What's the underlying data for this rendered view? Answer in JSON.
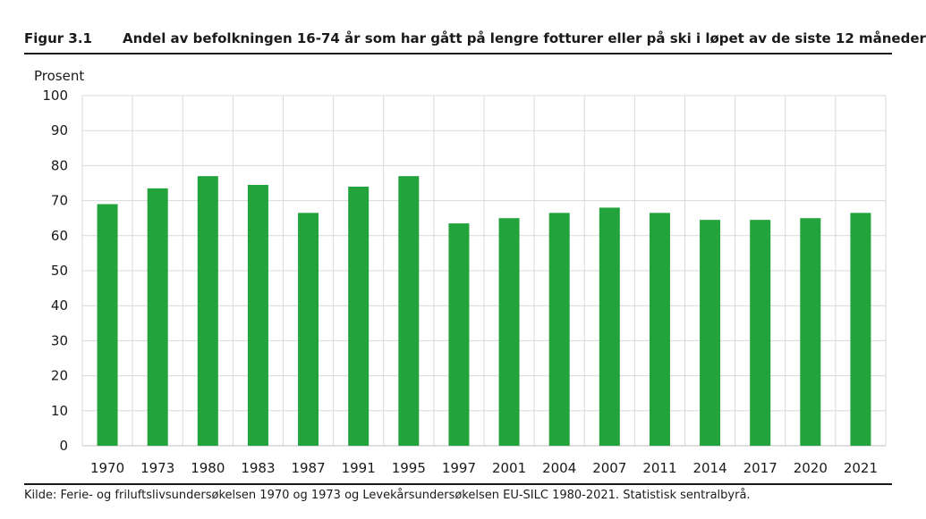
{
  "figure": {
    "label": "Figur 3.1",
    "title": "Andel av befolkningen 16-74 år som har gått på lengre fotturer eller på ski i løpet av de siste 12 måneder",
    "source": "Kilde: Ferie- og friluftslivsundersøkelsen 1970 og 1973 og Levekårsundersøkelsen EU-SILC 1980-2021. Statistisk sentralbyrå."
  },
  "chart_data": {
    "type": "bar",
    "title": "Andel av befolkningen 16-74 år som har gått på lengre fotturer eller på ski i løpet av de siste 12 måneder",
    "ylabel": "Prosent",
    "xlabel": "",
    "categories": [
      "1970",
      "1973",
      "1980",
      "1983",
      "1987",
      "1991",
      "1995",
      "1997",
      "2001",
      "2004",
      "2007",
      "2011",
      "2014",
      "2017",
      "2020",
      "2021"
    ],
    "values": [
      69,
      73.5,
      77,
      74.5,
      66.5,
      74,
      77,
      63.5,
      65,
      66.5,
      68,
      66.5,
      64.5,
      64.5,
      65,
      66.5
    ],
    "ylim": [
      0,
      100
    ],
    "yticks": [
      0,
      10,
      20,
      30,
      40,
      50,
      60,
      70,
      80,
      90,
      100
    ],
    "grid": true,
    "legend": "none",
    "colors": {
      "bar": "#22a33c",
      "grid": "#d9d9d9",
      "text": "#1a1a1a"
    }
  }
}
